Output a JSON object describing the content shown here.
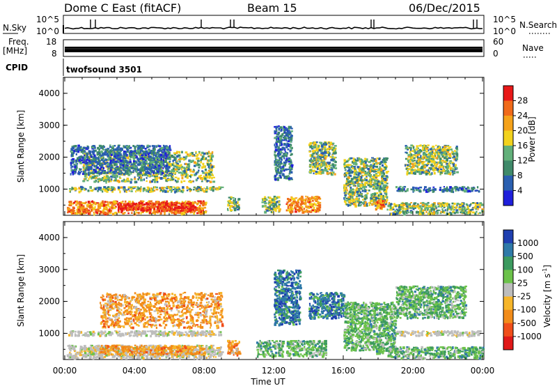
{
  "header": {
    "title": "Dome C East (fitACF)",
    "beam": "Beam 15",
    "date": "06/Dec/2015"
  },
  "top_panels": {
    "nsky_label": "N.Sky",
    "nsearch_label": "N.Search",
    "noise_ticks_left": [
      "10^5",
      "10^0"
    ],
    "noise_ticks_right": [
      "10^5",
      "10^0"
    ],
    "freq_label_line1": "Freq.",
    "freq_label_line2": "[MHz]",
    "freq_ticks": [
      "18",
      "8"
    ],
    "nave_label": "Nave",
    "nave_ticks": [
      "60",
      "0"
    ],
    "cpid_label": "CPID",
    "cpid_value": "twofsound 3501"
  },
  "chart_data": [
    {
      "type": "heatmap",
      "name": "power",
      "ylabel": "Slant Range [km]",
      "yticks": [
        "1000",
        "2000",
        "3000",
        "4000"
      ],
      "ylim": [
        180,
        4500
      ],
      "x_ticks": [
        "00:00",
        "04:00",
        "08:00",
        "12:00",
        "16:00",
        "20:00",
        "00:00"
      ],
      "xlim_hours": [
        0,
        24
      ],
      "colorbar_label": "Power [dB]",
      "colorbar_ticks": [
        "4",
        "8",
        "12",
        "16",
        "20",
        "24",
        "28"
      ],
      "colorbar_colors": [
        "#1f1fdb",
        "#2a5fb0",
        "#3f8a6a",
        "#62b07a",
        "#f2d21d",
        "#f5a21a",
        "#f06a1a",
        "#e81818"
      ],
      "echo_regions": [
        {
          "t0": 0.1,
          "t1": 8.1,
          "r0": 250,
          "r1": 650,
          "level": "high"
        },
        {
          "t0": 3.0,
          "t1": 7.5,
          "r0": 350,
          "r1": 600,
          "level": "max"
        },
        {
          "t0": 0.2,
          "t1": 9.0,
          "r0": 950,
          "r1": 1100,
          "level": "mid"
        },
        {
          "t0": 1.0,
          "t1": 8.5,
          "r0": 1250,
          "r1": 2200,
          "level": "mid"
        },
        {
          "t0": 0.3,
          "t1": 6.0,
          "r0": 1500,
          "r1": 2400,
          "level": "low"
        },
        {
          "t0": 9.3,
          "t1": 10.0,
          "r0": 350,
          "r1": 800,
          "level": "mid"
        },
        {
          "t0": 11.3,
          "t1": 12.3,
          "r0": 300,
          "r1": 800,
          "level": "mid"
        },
        {
          "t0": 12.7,
          "t1": 14.6,
          "r0": 300,
          "r1": 800,
          "level": "high"
        },
        {
          "t0": 12.0,
          "t1": 13.0,
          "r0": 1300,
          "r1": 3000,
          "level": "low"
        },
        {
          "t0": 14.0,
          "t1": 15.5,
          "r0": 1500,
          "r1": 2500,
          "level": "mid"
        },
        {
          "t0": 16.0,
          "t1": 18.5,
          "r0": 500,
          "r1": 2000,
          "level": "mid"
        },
        {
          "t0": 17.8,
          "t1": 18.3,
          "r0": 400,
          "r1": 700,
          "level": "high"
        },
        {
          "t0": 19.0,
          "t1": 23.8,
          "r0": 950,
          "r1": 1100,
          "level": "low"
        },
        {
          "t0": 19.5,
          "t1": 22.5,
          "r0": 1500,
          "r1": 2400,
          "level": "mid"
        },
        {
          "t0": 18.5,
          "t1": 24.0,
          "r0": 250,
          "r1": 600,
          "level": "mid"
        }
      ]
    },
    {
      "type": "heatmap",
      "name": "velocity",
      "ylabel": "Slant Range [km]",
      "yticks": [
        "1000",
        "2000",
        "3000",
        "4000"
      ],
      "ylim": [
        180,
        4500
      ],
      "x_ticks": [
        "00:00",
        "04:00",
        "08:00",
        "12:00",
        "16:00",
        "20:00",
        "00:00"
      ],
      "xlim_hours": [
        0,
        24
      ],
      "xlabel": "Time UT",
      "colorbar_label": "Velocity [m s",
      "colorbar_label_sup": "-1",
      "colorbar_ticks": [
        "1000",
        "500",
        "100",
        "25",
        "-25",
        "-100",
        "-500",
        "-1000"
      ],
      "colorbar_colors": [
        "#1f3fb0",
        "#2f7aa8",
        "#3c9a5f",
        "#6cc24a",
        "#bdbdbd",
        "#f6b52a",
        "#f28c1a",
        "#f04e1a",
        "#e01818"
      ],
      "echo_regions": [
        {
          "t0": 0.1,
          "t1": 9.0,
          "r0": 250,
          "r1": 650,
          "level": "gray"
        },
        {
          "t0": 2.0,
          "t1": 8.0,
          "r0": 350,
          "r1": 650,
          "level": "orange"
        },
        {
          "t0": 0.2,
          "t1": 9.0,
          "r0": 950,
          "r1": 1100,
          "level": "gray"
        },
        {
          "t0": 2.0,
          "t1": 9.0,
          "r0": 1200,
          "r1": 2300,
          "level": "orange"
        },
        {
          "t0": 9.3,
          "t1": 10.0,
          "r0": 350,
          "r1": 800,
          "level": "orange"
        },
        {
          "t0": 11.0,
          "t1": 12.5,
          "r0": 300,
          "r1": 800,
          "level": "green"
        },
        {
          "t0": 12.7,
          "t1": 15.0,
          "r0": 300,
          "r1": 800,
          "level": "green"
        },
        {
          "t0": 12.0,
          "t1": 13.5,
          "r0": 1300,
          "r1": 3000,
          "level": "blue"
        },
        {
          "t0": 14.0,
          "t1": 16.0,
          "r0": 1500,
          "r1": 2300,
          "level": "blue"
        },
        {
          "t0": 16.0,
          "t1": 19.0,
          "r0": 500,
          "r1": 2000,
          "level": "green"
        },
        {
          "t0": 17.8,
          "t1": 18.3,
          "r0": 400,
          "r1": 700,
          "level": "green"
        },
        {
          "t0": 19.0,
          "t1": 23.8,
          "r0": 950,
          "r1": 1100,
          "level": "gray"
        },
        {
          "t0": 19.0,
          "t1": 23.0,
          "r0": 1500,
          "r1": 2500,
          "level": "green"
        },
        {
          "t0": 18.5,
          "t1": 24.0,
          "r0": 250,
          "r1": 600,
          "level": "green"
        }
      ]
    }
  ]
}
